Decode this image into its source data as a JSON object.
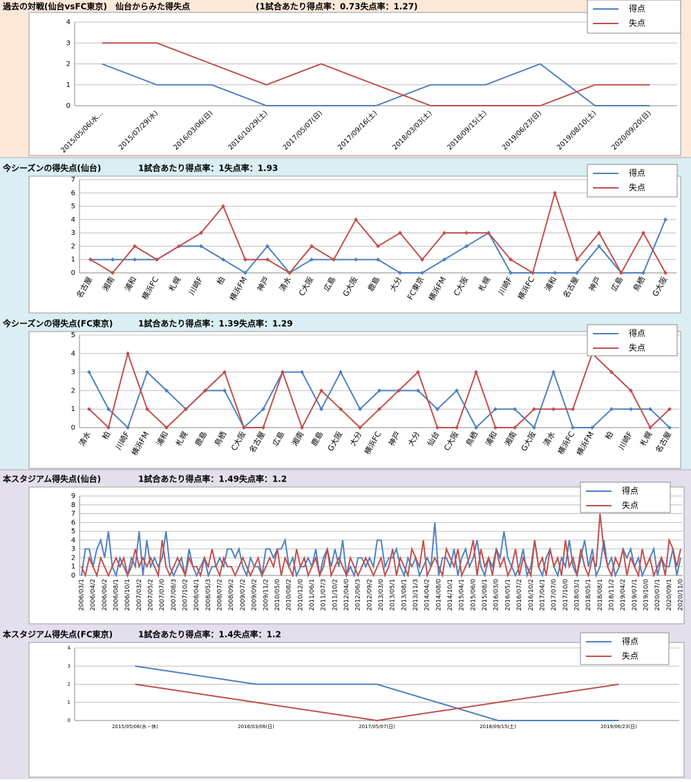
{
  "chart_data": [
    {
      "type": "line",
      "title": "過去の対戦(仙台vsFC東京)　仙台からみた得失点",
      "subtitle": "(1試合あたり得点率：0.73失点率：1.27)",
      "categories": [
        "2015/05/06(水…",
        "2015/07/29(水)",
        "2016/03/06(日)",
        "2016/10/29(土)",
        "2017/05/07(日)",
        "2017/09/16(土)",
        "2018/03/03(土)",
        "2018/09/15(土)",
        "2019/06/23(日)",
        "2019/08/10(土)",
        "2020/09/20(日)"
      ],
      "series": [
        {
          "name": "得点",
          "color": "#4f81bd",
          "values": [
            2,
            1,
            1,
            0,
            0,
            0,
            1,
            1,
            2,
            0,
            0
          ]
        },
        {
          "name": "失点",
          "color": "#c0504d",
          "values": [
            3,
            3,
            2,
            1,
            2,
            1,
            0,
            0,
            0,
            1,
            1
          ]
        }
      ],
      "ylim": [
        0,
        4
      ],
      "yticks": [
        0,
        1,
        2,
        3,
        4
      ],
      "grid": true,
      "markers": false
    },
    {
      "type": "line",
      "title": "今シーズンの得失点(仙台)",
      "subtitle": "1試合あたり得点率：1失点率：1.93",
      "categories": [
        "名古屋",
        "湘南",
        "浦和",
        "横浜FC",
        "札幌",
        "川崎F",
        "柏",
        "横浜FM",
        "神戸",
        "清水",
        "C大阪",
        "広島",
        "G大阪",
        "鹿島",
        "大分",
        "FC東京",
        "横浜FM",
        "C大阪",
        "札幌",
        "川崎F",
        "横浜FC",
        "浦和",
        "名古屋",
        "神戸",
        "広島",
        "鳥栖",
        "G大阪"
      ],
      "series": [
        {
          "name": "得点",
          "color": "#4f81bd",
          "values": [
            1,
            1,
            1,
            1,
            2,
            2,
            1,
            0,
            2,
            0,
            1,
            1,
            1,
            1,
            0,
            0,
            1,
            2,
            3,
            0,
            0,
            0,
            0,
            2,
            0,
            0,
            4
          ]
        },
        {
          "name": "失点",
          "color": "#c0504d",
          "values": [
            1,
            0,
            2,
            1,
            2,
            3,
            5,
            1,
            1,
            0,
            2,
            1,
            4,
            2,
            3,
            1,
            3,
            3,
            3,
            1,
            0,
            6,
            1,
            3,
            0,
            3,
            0
          ]
        }
      ],
      "ylim": [
        0,
        7
      ],
      "yticks": [
        0,
        1,
        2,
        3,
        4,
        5,
        6,
        7
      ],
      "grid": true,
      "markers": true
    },
    {
      "type": "line",
      "title": "今シーズンの得失点(FC東京)",
      "subtitle": "1試合あたり得点率：1.39失点率：1.29",
      "categories": [
        "清水",
        "柏",
        "川崎F",
        "横浜FM",
        "浦和",
        "札幌",
        "鹿島",
        "鳥栖",
        "C大阪",
        "名古屋",
        "広島",
        "湘南",
        "鹿島",
        "G大阪",
        "大分",
        "横浜FC",
        "神戸",
        "大分",
        "仙台",
        "C大阪",
        "鳥栖",
        "浦和",
        "湘南",
        "G大阪",
        "清水",
        "横浜FC",
        "横浜FM",
        "柏",
        "川崎F",
        "札幌",
        "名古屋"
      ],
      "series": [
        {
          "name": "得点",
          "color": "#4f81bd",
          "values": [
            3,
            1,
            0,
            3,
            2,
            1,
            2,
            2,
            0,
            1,
            3,
            3,
            1,
            3,
            1,
            2,
            2,
            2,
            1,
            2,
            0,
            1,
            1,
            0,
            3,
            0,
            0,
            1,
            1,
            1,
            0
          ]
        },
        {
          "name": "失点",
          "color": "#c0504d",
          "values": [
            1,
            0,
            4,
            1,
            0,
            1,
            2,
            3,
            0,
            0,
            3,
            0,
            2,
            1,
            0,
            1,
            2,
            3,
            0,
            0,
            3,
            0,
            0,
            1,
            1,
            1,
            4,
            3,
            2,
            0,
            1
          ]
        }
      ],
      "ylim": [
        0,
        5
      ],
      "yticks": [
        0,
        1,
        2,
        3,
        4,
        5
      ],
      "grid": true,
      "markers": true
    },
    {
      "type": "line",
      "title": "本スタジアム得失点(仙台)",
      "subtitle": "1試合あたり得点率：1.49失点率：1.2",
      "categories": [
        "2006/03/1",
        null,
        null,
        "2006/04/2",
        null,
        null,
        "2006/06/2",
        null,
        null,
        "2006/08/1",
        null,
        null,
        "2006/10/1",
        null,
        null,
        "2007/03/2",
        null,
        null,
        "2007/05/2",
        null,
        null,
        "2007/07/0",
        null,
        null,
        "2007/08/3",
        null,
        null,
        "2007/10/2",
        null,
        null,
        "2008/04/1",
        null,
        null,
        "2008/05/3",
        null,
        null,
        "2008/07/2",
        null,
        null,
        "2008/09/2",
        null,
        null,
        "2009/07/2",
        null,
        null,
        "2009/09/2",
        null,
        null,
        "2009/11/2",
        null,
        null,
        "2010/05/0",
        null,
        null,
        "2010/08/2",
        null,
        null,
        "2010/12/0",
        null,
        null,
        "2011/06/1",
        null,
        null,
        "2011/07/3",
        null,
        null,
        "2011/10/2",
        null,
        null,
        "2012/04/0",
        null,
        null,
        "2012/06/3",
        null,
        null,
        "2012/09/2",
        null,
        null,
        "2013/03/0",
        null,
        null,
        "2013/05/1",
        null,
        null,
        "2013/08/1",
        null,
        null,
        "2013/11/3",
        null,
        null,
        "2014/04/2",
        null,
        null,
        "2014/08/0",
        null,
        null,
        "2014/10/1",
        null,
        null,
        "2015/04/1",
        null,
        null,
        "2015/06/0",
        null,
        null,
        "2015/08/1",
        null,
        null,
        "2016/03/0",
        null,
        null,
        "2016/05/1",
        null,
        null,
        "2016/07/2",
        null,
        null,
        "2016/10/2",
        null,
        null,
        "2017/04/1",
        null,
        null,
        "2017/07/0",
        null,
        null,
        "2017/10/0",
        null,
        null,
        "2018/03/1",
        null,
        null,
        "2018/05/1",
        null,
        null,
        "2018/08/1",
        null,
        null,
        "2018/11/2",
        null,
        null,
        "2019/04/2",
        null,
        null,
        "2019/07/1",
        null,
        null,
        "2019/10/0",
        null,
        null,
        "2020/07/1",
        null,
        null,
        "2020/09/1",
        null,
        null,
        "2020/11/0"
      ],
      "series": [
        {
          "name": "得点",
          "color": "#4f81bd",
          "values": [
            0,
            3,
            3,
            1,
            3,
            4,
            2,
            5,
            1,
            0,
            2,
            1,
            0,
            2,
            1,
            5,
            0,
            4,
            1,
            2,
            1,
            2,
            5,
            1,
            0,
            1,
            2,
            0,
            3,
            1,
            0,
            1,
            2,
            0,
            1,
            1,
            2,
            1,
            3,
            3,
            2,
            3,
            1,
            0,
            2,
            1,
            1,
            0,
            3,
            3,
            2,
            3,
            3,
            4,
            1,
            2,
            0,
            1,
            1,
            2,
            1,
            3,
            0,
            2,
            3,
            1,
            3,
            1,
            4,
            0,
            1,
            0,
            2,
            2,
            1,
            2,
            1,
            4,
            4,
            1,
            2,
            2,
            3,
            1,
            0,
            2,
            1,
            2,
            0,
            1,
            2,
            1,
            6,
            0,
            2,
            2,
            1,
            3,
            0,
            2,
            3,
            1,
            2,
            4,
            1,
            0,
            2,
            1,
            3,
            2,
            5,
            2,
            1,
            0,
            1,
            3,
            0,
            1,
            4,
            1,
            0,
            2,
            3,
            1,
            0,
            2,
            1,
            4,
            1,
            0,
            2,
            4,
            1,
            3,
            0,
            1,
            4,
            1,
            2,
            0,
            1,
            3,
            2,
            3,
            1,
            2,
            0,
            1,
            2,
            3,
            0,
            2,
            1,
            1,
            3,
            0,
            2
          ]
        },
        {
          "name": "失点",
          "color": "#c0504d",
          "values": [
            1,
            0,
            2,
            1,
            0,
            2,
            1,
            0,
            1,
            2,
            1,
            2,
            0,
            1,
            3,
            1,
            2,
            1,
            2,
            1,
            0,
            4,
            1,
            0,
            1,
            2,
            1,
            0,
            2,
            1,
            1,
            0,
            2,
            1,
            3,
            1,
            0,
            2,
            1,
            1,
            0,
            1,
            2,
            1,
            0,
            1,
            2,
            0,
            1,
            2,
            1,
            3,
            0,
            2,
            1,
            0,
            3,
            1,
            2,
            0,
            1,
            2,
            0,
            1,
            3,
            0,
            1,
            2,
            1,
            0,
            2,
            1,
            0,
            1,
            2,
            1,
            0,
            1,
            2,
            0,
            1,
            3,
            0,
            2,
            1,
            0,
            3,
            2,
            1,
            4,
            0,
            1,
            2,
            1,
            0,
            3,
            2,
            1,
            3,
            0,
            1,
            2,
            4,
            0,
            3,
            1,
            2,
            0,
            3,
            1,
            2,
            0,
            1,
            3,
            0,
            2,
            1,
            0,
            4,
            1,
            2,
            0,
            3,
            1,
            2,
            0,
            4,
            1,
            2,
            0,
            3,
            1,
            0,
            2,
            1,
            7,
            3,
            1,
            0,
            2,
            1,
            3,
            0,
            2,
            1,
            0,
            3,
            1,
            2,
            0,
            1,
            2,
            0,
            4,
            3,
            1,
            3
          ]
        }
      ],
      "ylim": [
        0,
        9
      ],
      "yticks": [
        0,
        1,
        2,
        3,
        4,
        5,
        6,
        7,
        8,
        9
      ],
      "grid": true,
      "markers": false
    },
    {
      "type": "line",
      "title": "本スタジアム得失点(FC東京)",
      "subtitle": "1試合あたり得点率：1.4失点率：1.2",
      "categories": [
        "2015/05/06(水・休)",
        "2016/03/06(日)",
        "2017/05/07(日)",
        "2018/09/15(土)",
        "2019/06/23(日)"
      ],
      "series": [
        {
          "name": "得点",
          "color": "#4f81bd",
          "values": [
            3,
            2,
            2,
            0,
            0
          ]
        },
        {
          "name": "失点",
          "color": "#c0504d",
          "values": [
            2,
            1,
            0,
            1,
            2
          ]
        }
      ],
      "ylim": [
        0,
        4
      ],
      "yticks": [
        0,
        1,
        2,
        3,
        4
      ],
      "grid": true,
      "markers": false
    }
  ]
}
